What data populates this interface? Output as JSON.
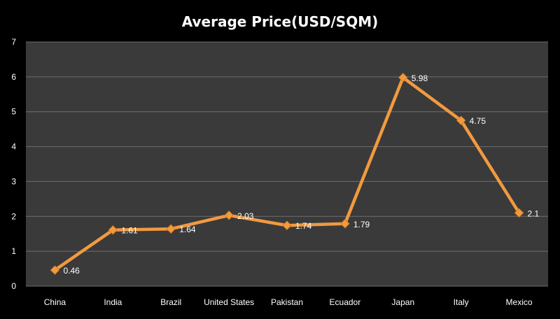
{
  "chart_data": {
    "type": "line",
    "title": "Average Price(USD/SQM)",
    "xlabel": "",
    "ylabel": "",
    "categories": [
      "China",
      "India",
      "Brazil",
      "United States",
      "Pakistan",
      "Ecuador",
      "Japan",
      "Italy",
      "Mexico"
    ],
    "series": [
      {
        "values": [
          0.46,
          1.61,
          1.64,
          2.03,
          1.74,
          1.79,
          5.98,
          4.75,
          2.1
        ],
        "data_labels": [
          "0.46",
          "1.61",
          "1.64",
          "2.03",
          "1.74",
          "1.79",
          "5.98",
          "4.75",
          "2.1"
        ],
        "color": "#f29a3f"
      }
    ],
    "ylim": [
      0,
      7
    ],
    "yticks": [
      "0",
      "1",
      "2",
      "3",
      "4",
      "5",
      "6",
      "7"
    ],
    "grid": true,
    "legend": "none",
    "colors": {
      "background": "#000000",
      "plot_area": "#3a3a3a",
      "gridline": "#6e6e6e",
      "text": "#ffffff"
    }
  }
}
